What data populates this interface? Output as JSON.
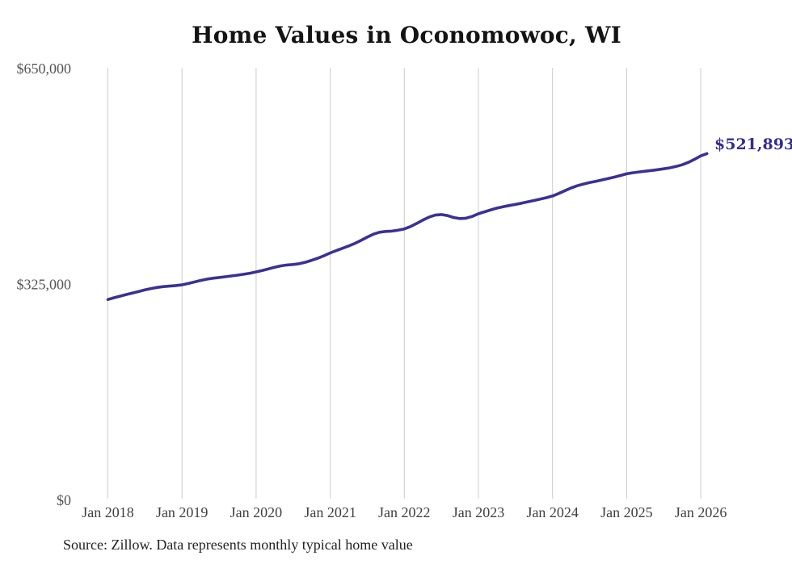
{
  "page": {
    "background": "#ffffff"
  },
  "chart_data": {
    "type": "line",
    "title": "Home Values in Oconomowoc, WI",
    "source_note": "Source: Zillow. Data represents monthly typical home value",
    "xlabel": "",
    "ylabel": "",
    "x_tick_labels": [
      "Jan 2018",
      "Jan 2019",
      "Jan 2020",
      "Jan 2021",
      "Jan 2022",
      "Jan 2023",
      "Jan 2024",
      "Jan 2025",
      "Jan 2026"
    ],
    "y_ticks": [
      {
        "label": "$0",
        "value": 0
      },
      {
        "label": "$325,000",
        "value": 325000
      },
      {
        "label": "$650,000",
        "value": 650000
      }
    ],
    "ylim": [
      0,
      650000
    ],
    "grid": {
      "vertical": true,
      "horizontal": false,
      "color": "#cccccc"
    },
    "legend": {
      "show": false
    },
    "series": [
      {
        "name": "Monthly typical home value",
        "color": "#3a3196",
        "line_width": 3.6,
        "end_label": "$521,893",
        "end_label_color": "#342d8f",
        "final_value": 521893,
        "freq": "monthly",
        "months": [
          "2018-01",
          "2018-02",
          "2018-03",
          "2018-04",
          "2018-05",
          "2018-06",
          "2018-07",
          "2018-08",
          "2018-09",
          "2018-10",
          "2018-11",
          "2018-12",
          "2019-01",
          "2019-02",
          "2019-03",
          "2019-04",
          "2019-05",
          "2019-06",
          "2019-07",
          "2019-08",
          "2019-09",
          "2019-10",
          "2019-11",
          "2019-12",
          "2020-01",
          "2020-02",
          "2020-03",
          "2020-04",
          "2020-05",
          "2020-06",
          "2020-07",
          "2020-08",
          "2020-09",
          "2020-10",
          "2020-11",
          "2020-12",
          "2021-01",
          "2021-02",
          "2021-03",
          "2021-04",
          "2021-05",
          "2021-06",
          "2021-07",
          "2021-08",
          "2021-09",
          "2021-10",
          "2021-11",
          "2021-12",
          "2022-01",
          "2022-02",
          "2022-03",
          "2022-04",
          "2022-05",
          "2022-06",
          "2022-07",
          "2022-08",
          "2022-09",
          "2022-10",
          "2022-11",
          "2022-12",
          "2023-01",
          "2023-02",
          "2023-03",
          "2023-04",
          "2023-05",
          "2023-06",
          "2023-07",
          "2023-08",
          "2023-09",
          "2023-10",
          "2023-11",
          "2023-12",
          "2024-01",
          "2024-02",
          "2024-03",
          "2024-04",
          "2024-05",
          "2024-06",
          "2024-07",
          "2024-08",
          "2024-09",
          "2024-10",
          "2024-11",
          "2024-12",
          "2025-01",
          "2025-02",
          "2025-03",
          "2025-04",
          "2025-05",
          "2025-06",
          "2025-07",
          "2025-08",
          "2025-09",
          "2025-10",
          "2025-11",
          "2025-12",
          "2026-01",
          "2026-02"
        ],
        "values": [
          302300,
          304900,
          307400,
          309800,
          312100,
          314400,
          316700,
          318800,
          320500,
          321700,
          322500,
          323300,
          324400,
          326300,
          328700,
          331000,
          332900,
          334300,
          335400,
          336500,
          337700,
          339000,
          340300,
          341900,
          343800,
          346000,
          348400,
          350800,
          352900,
          354300,
          355000,
          356200,
          358400,
          361300,
          364500,
          368200,
          372400,
          376000,
          379400,
          382900,
          386800,
          391300,
          396200,
          400700,
          403600,
          404800,
          405300,
          406600,
          408600,
          412100,
          416800,
          421800,
          426300,
          429400,
          430200,
          428600,
          425700,
          424200,
          424700,
          427400,
          431400,
          434400,
          437300,
          439900,
          442000,
          443800,
          445500,
          447400,
          449400,
          451400,
          453400,
          455600,
          458100,
          461900,
          466200,
          470200,
          473600,
          476200,
          478300,
          480300,
          482300,
          484400,
          486600,
          489000,
          491600,
          493200,
          494400,
          495500,
          496600,
          497800,
          499100,
          500600,
          502600,
          505200,
          508800,
          513400,
          518600,
          521893
        ]
      }
    ]
  }
}
